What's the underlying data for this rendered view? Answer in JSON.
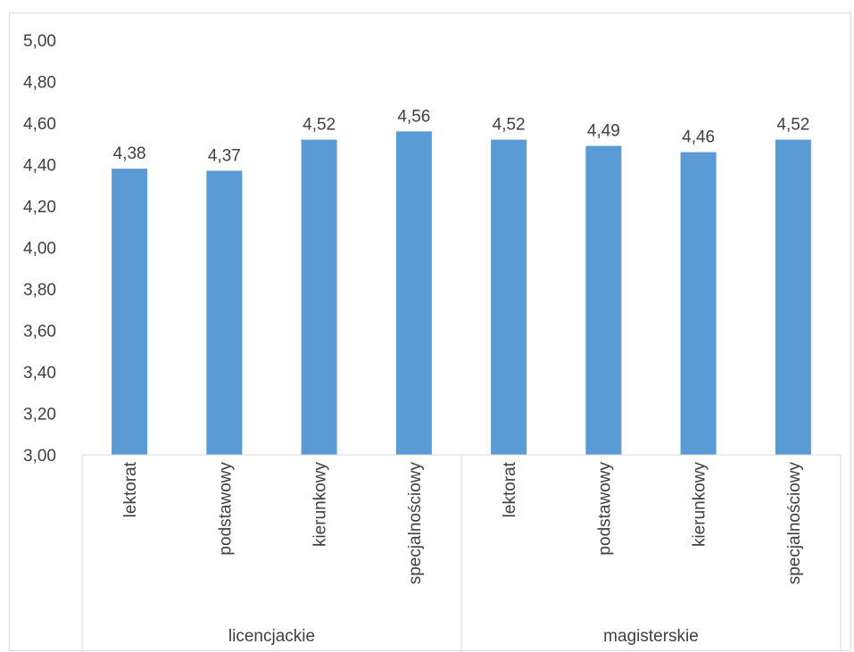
{
  "chart_data": {
    "type": "bar",
    "title": "",
    "xlabel": "",
    "ylabel": "",
    "ylim": [
      3.0,
      5.0
    ],
    "yticks": [
      "3,00",
      "3,20",
      "3,40",
      "3,60",
      "3,80",
      "4,00",
      "4,20",
      "4,40",
      "4,60",
      "4,80",
      "5,00"
    ],
    "groups": [
      {
        "label": "licencjackie",
        "categories": [
          "lektorat",
          "podstawowy",
          "kierunkowy",
          "specjalnościowy"
        ]
      },
      {
        "label": "magisterskie",
        "categories": [
          "lektorat",
          "podstawowy",
          "kierunkowy",
          "specjalnościowy"
        ]
      }
    ],
    "categories": [
      "lektorat",
      "podstawowy",
      "kierunkowy",
      "specjalnościowy",
      "lektorat",
      "podstawowy",
      "kierunkowy",
      "specjalnościowy"
    ],
    "values": [
      4.38,
      4.37,
      4.52,
      4.56,
      4.52,
      4.49,
      4.46,
      4.52
    ],
    "data_labels": [
      "4,38",
      "4,37",
      "4,52",
      "4,56",
      "4,52",
      "4,49",
      "4,46",
      "4,52"
    ],
    "grid": false,
    "legend": "none",
    "bar_color": "#5b9bd5"
  }
}
